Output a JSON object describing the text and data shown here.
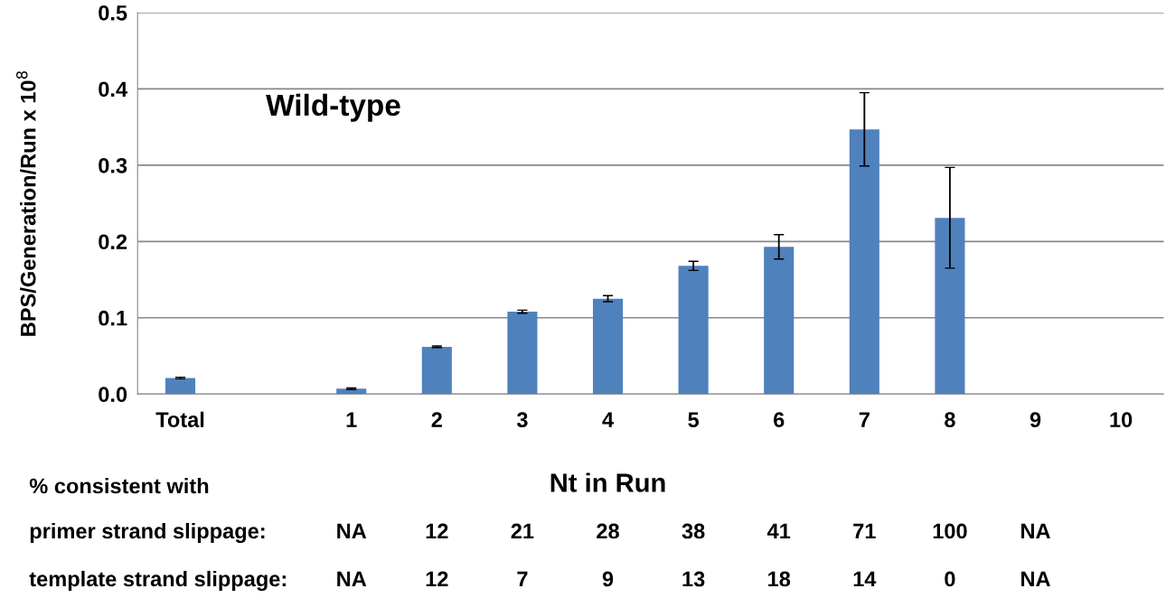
{
  "chart_data": {
    "type": "bar",
    "ylabel": "BPS/Generation/Run x 10$^{8}$",
    "xlabel": "Nt in Run",
    "categories": [
      "Total",
      null,
      "1",
      "2",
      "3",
      "4",
      "5",
      "6",
      "7",
      "8",
      "9",
      "10"
    ],
    "values": [
      0.021,
      0,
      0.007,
      0.062,
      0.108,
      0.125,
      0.168,
      0.193,
      0.347,
      0.231,
      0,
      0
    ],
    "errors": [
      0.001,
      null,
      0.001,
      0.001,
      0.002,
      0.004,
      0.006,
      0.016,
      0.048,
      0.066,
      null,
      null
    ],
    "color": "#4f81bd",
    "ylim": [
      0,
      0.5
    ],
    "yticks": [
      {
        "value": 0,
        "label": "0.0"
      },
      {
        "value": 0.1,
        "label": "0.1"
      },
      {
        "value": 0.2,
        "label": "0.2"
      },
      {
        "value": 0.3,
        "label": "0.3"
      },
      {
        "value": 0.4,
        "label": "0.4"
      },
      {
        "value": 0.5,
        "label": "0.5"
      }
    ],
    "grid": "y",
    "legend": false,
    "annotations": [
      "Wild-type",
      "% consistent with",
      "primer strand slippage:",
      "NA",
      "12",
      "21",
      "28",
      "38",
      "41",
      "71",
      "100",
      "NA",
      "template strand slippage:",
      "NA",
      "12",
      "7",
      "9",
      "13",
      "18",
      "14",
      "0",
      "NA"
    ]
  }
}
